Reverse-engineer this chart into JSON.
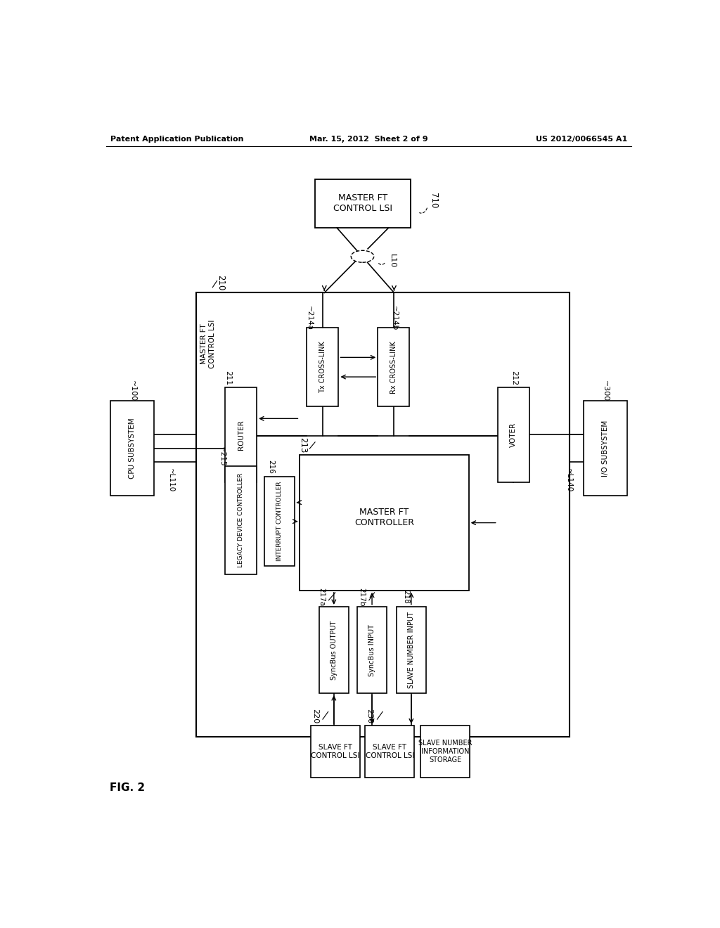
{
  "bg_color": "#ffffff",
  "header_left": "Patent Application Publication",
  "header_mid": "Mar. 15, 2012  Sheet 2 of 9",
  "header_right": "US 2012/0066545 A1",
  "footer_label": "FIG. 2"
}
